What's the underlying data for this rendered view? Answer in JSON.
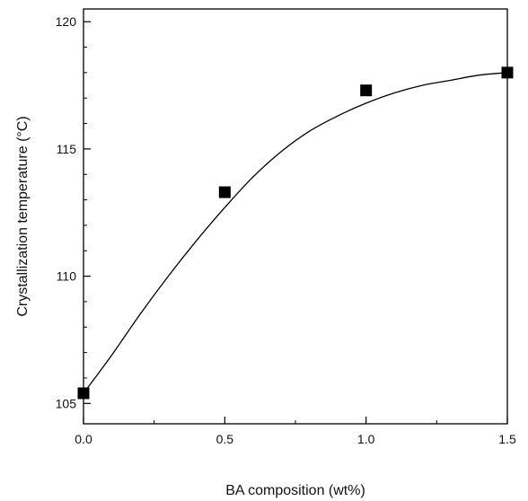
{
  "chart_data": {
    "type": "scatter",
    "title": "",
    "xlabel": "BA composition (wt%)",
    "ylabel": "Crystallization temperature (°C)",
    "xlim": [
      0.0,
      1.5
    ],
    "ylim": [
      104.2,
      120.5
    ],
    "x_ticks": [
      0.0,
      0.5,
      1.0,
      1.5
    ],
    "x_tick_labels": [
      "0.0",
      "0.5",
      "1.0",
      "1.5"
    ],
    "y_ticks": [
      105,
      110,
      115,
      120
    ],
    "y_tick_labels": [
      "105",
      "110",
      "115",
      "120"
    ],
    "x_minor_step": 0.25,
    "y_minor_step": 1,
    "grid": false,
    "series": [
      {
        "marker": "square",
        "color": "#000000",
        "points": [
          {
            "x": 0.0,
            "y": 105.4
          },
          {
            "x": 0.5,
            "y": 113.3
          },
          {
            "x": 1.0,
            "y": 117.3
          },
          {
            "x": 1.5,
            "y": 118.0
          }
        ]
      }
    ],
    "fit_curve": {
      "color": "#000000",
      "points": [
        {
          "x": 0.0,
          "y": 105.4
        },
        {
          "x": 0.1,
          "y": 106.9
        },
        {
          "x": 0.2,
          "y": 108.5
        },
        {
          "x": 0.3,
          "y": 110.0
        },
        {
          "x": 0.4,
          "y": 111.4
        },
        {
          "x": 0.5,
          "y": 112.7
        },
        {
          "x": 0.6,
          "y": 113.9
        },
        {
          "x": 0.7,
          "y": 114.9
        },
        {
          "x": 0.8,
          "y": 115.7
        },
        {
          "x": 0.9,
          "y": 116.3
        },
        {
          "x": 1.0,
          "y": 116.8
        },
        {
          "x": 1.1,
          "y": 117.2
        },
        {
          "x": 1.2,
          "y": 117.5
        },
        {
          "x": 1.3,
          "y": 117.7
        },
        {
          "x": 1.4,
          "y": 117.9
        },
        {
          "x": 1.5,
          "y": 118.0
        }
      ]
    }
  }
}
